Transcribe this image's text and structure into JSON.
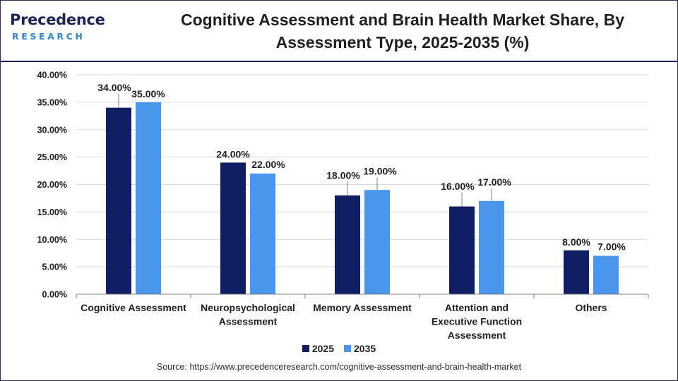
{
  "header": {
    "logo_top": "Precedence",
    "logo_bottom": "RESEARCH",
    "title_line1": "Cognitive Assessment and Brain Health Market Share, By",
    "title_line2": "Assessment Type, 2025-2035 (%)"
  },
  "colors": {
    "series_2025": "#0f1d63",
    "series_2035": "#4a96ec",
    "brand_navy": "#1b2352",
    "brand_blue": "#2f86c8"
  },
  "chart_data": {
    "type": "bar",
    "title": "Cognitive Assessment and Brain Health Market Share, By Assessment Type, 2025-2035 (%)",
    "categories": [
      [
        "Cognitive Assessment"
      ],
      [
        "Neuropsychological",
        "Assessment"
      ],
      [
        "Memory Assessment"
      ],
      [
        "Attention and",
        "Executive Function",
        "Assessment"
      ],
      [
        "Others"
      ]
    ],
    "series": [
      {
        "name": "2025",
        "values": [
          34,
          24,
          18,
          16,
          8
        ],
        "labels": [
          "34.00%",
          "24.00%",
          "18.00%",
          "16.00%",
          "8.00%"
        ]
      },
      {
        "name": "2035",
        "values": [
          35,
          22,
          19,
          17,
          7
        ],
        "labels": [
          "35.00%",
          "22.00%",
          "19.00%",
          "17.00%",
          "7.00%"
        ]
      }
    ],
    "ylim": [
      0,
      40
    ],
    "yticks": [
      0,
      5,
      10,
      15,
      20,
      25,
      30,
      35,
      40
    ],
    "ytick_labels": [
      "0.00%",
      "5.00%",
      "10.00%",
      "15.00%",
      "20.00%",
      "25.00%",
      "30.00%",
      "35.00%",
      "40.00%"
    ],
    "grid": true,
    "legend_position": "bottom-center",
    "xlabel": "",
    "ylabel": ""
  },
  "source": "Source: https://www.precedenceresearch.com/cognitive-assessment-and-brain-health-market"
}
